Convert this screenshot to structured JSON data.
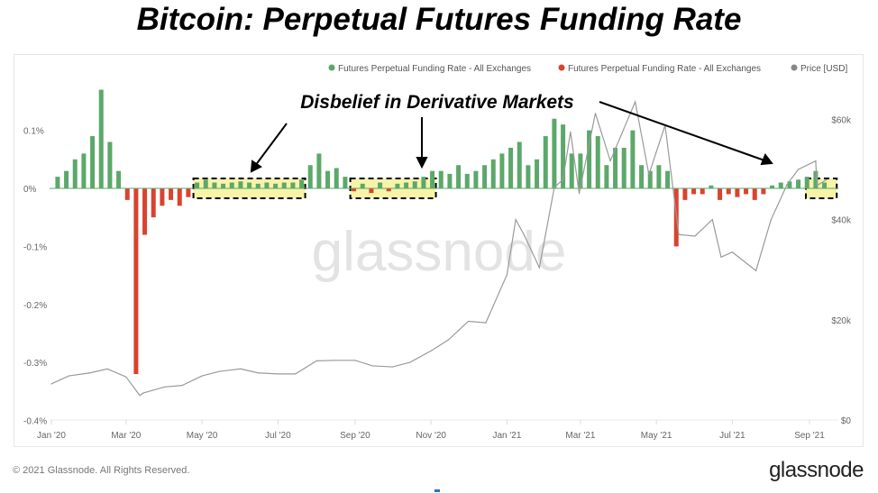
{
  "title": "Bitcoin: Perpetual Futures Funding Rate",
  "annotation": "Disbelief in Derivative Markets",
  "watermark": "glassnode",
  "footer": {
    "copyright": "© 2021 Glassnode. All Rights Reserved.",
    "logo": "glassnode"
  },
  "colors": {
    "positive": "#5ca86a",
    "negative": "#d9432f",
    "price": "#9a9a9a",
    "highlight": "#f7f3a8"
  },
  "chart_data": {
    "type": "bar+line",
    "legend": [
      "Futures Perpetual Funding Rate - All Exchanges",
      "Futures Perpetual Funding Rate - All Exchanges",
      "Price [USD]"
    ],
    "legend_position": "top-right",
    "x_ticks": [
      "Jan '20",
      "Mar '20",
      "May '20",
      "Jul '20",
      "Sep '20",
      "Nov '20",
      "Jan '21",
      "Mar '21",
      "May '21",
      "Jul '21",
      "Sep '21"
    ],
    "y_left_ticks": [
      "0.1%",
      "0%",
      "-0.1%",
      "-0.2%",
      "-0.3%",
      "-0.4%"
    ],
    "y_left_range": [
      -0.4,
      0.2
    ],
    "y_right_ticks": [
      "$60k",
      "$40k",
      "$20k",
      "$0"
    ],
    "y_right_range": [
      0,
      80000
    ],
    "highlight_ranges": [
      [
        "2020-04-27",
        "2020-07-20"
      ],
      [
        "2020-08-31",
        "2020-11-02"
      ],
      [
        "2021-09-01",
        "2021-09-20"
      ]
    ],
    "funding_rate": [
      [
        "2020-01-06",
        0.02
      ],
      [
        "2020-01-13",
        0.03
      ],
      [
        "2020-01-20",
        0.05
      ],
      [
        "2020-01-27",
        0.06
      ],
      [
        "2020-02-03",
        0.09
      ],
      [
        "2020-02-10",
        0.17
      ],
      [
        "2020-02-17",
        0.08
      ],
      [
        "2020-02-24",
        0.03
      ],
      [
        "2020-03-02",
        -0.02
      ],
      [
        "2020-03-09",
        -0.32
      ],
      [
        "2020-03-16",
        -0.08
      ],
      [
        "2020-03-23",
        -0.05
      ],
      [
        "2020-03-30",
        -0.03
      ],
      [
        "2020-04-06",
        -0.02
      ],
      [
        "2020-04-13",
        -0.03
      ],
      [
        "2020-04-20",
        -0.015
      ],
      [
        "2020-04-27",
        0.01
      ],
      [
        "2020-05-04",
        0.015
      ],
      [
        "2020-05-11",
        0.01
      ],
      [
        "2020-05-18",
        0.008
      ],
      [
        "2020-05-25",
        0.01
      ],
      [
        "2020-06-01",
        0.012
      ],
      [
        "2020-06-08",
        0.01
      ],
      [
        "2020-06-15",
        0.008
      ],
      [
        "2020-06-22",
        0.01
      ],
      [
        "2020-06-29",
        0.008
      ],
      [
        "2020-07-06",
        0.01
      ],
      [
        "2020-07-13",
        0.01
      ],
      [
        "2020-07-20",
        0.015
      ],
      [
        "2020-07-27",
        0.04
      ],
      [
        "2020-08-03",
        0.06
      ],
      [
        "2020-08-10",
        0.03
      ],
      [
        "2020-08-17",
        0.035
      ],
      [
        "2020-08-24",
        0.02
      ],
      [
        "2020-08-31",
        -0.005
      ],
      [
        "2020-09-07",
        0.008
      ],
      [
        "2020-09-14",
        -0.008
      ],
      [
        "2020-09-21",
        0.01
      ],
      [
        "2020-09-28",
        -0.005
      ],
      [
        "2020-10-05",
        0.008
      ],
      [
        "2020-10-12",
        0.01
      ],
      [
        "2020-10-19",
        0.012
      ],
      [
        "2020-10-26",
        0.02
      ],
      [
        "2020-11-02",
        0.03
      ],
      [
        "2020-11-09",
        0.03
      ],
      [
        "2020-11-16",
        0.025
      ],
      [
        "2020-11-23",
        0.04
      ],
      [
        "2020-11-30",
        0.025
      ],
      [
        "2020-12-07",
        0.03
      ],
      [
        "2020-12-14",
        0.04
      ],
      [
        "2020-12-21",
        0.05
      ],
      [
        "2020-12-28",
        0.06
      ],
      [
        "2021-01-04",
        0.07
      ],
      [
        "2021-01-11",
        0.08
      ],
      [
        "2021-01-18",
        0.04
      ],
      [
        "2021-01-25",
        0.05
      ],
      [
        "2021-02-01",
        0.09
      ],
      [
        "2021-02-08",
        0.12
      ],
      [
        "2021-02-15",
        0.11
      ],
      [
        "2021-02-22",
        0.06
      ],
      [
        "2021-03-01",
        0.06
      ],
      [
        "2021-03-08",
        0.1
      ],
      [
        "2021-03-15",
        0.09
      ],
      [
        "2021-03-22",
        0.04
      ],
      [
        "2021-03-29",
        0.07
      ],
      [
        "2021-04-05",
        0.07
      ],
      [
        "2021-04-12",
        0.1
      ],
      [
        "2021-04-19",
        0.04
      ],
      [
        "2021-04-26",
        0.03
      ],
      [
        "2021-05-03",
        0.04
      ],
      [
        "2021-05-10",
        0.03
      ],
      [
        "2021-05-17",
        -0.1
      ],
      [
        "2021-05-24",
        -0.02
      ],
      [
        "2021-05-31",
        -0.01
      ],
      [
        "2021-06-07",
        -0.01
      ],
      [
        "2021-06-14",
        0.005
      ],
      [
        "2021-06-21",
        -0.02
      ],
      [
        "2021-06-28",
        -0.01
      ],
      [
        "2021-07-05",
        -0.015
      ],
      [
        "2021-07-12",
        -0.01
      ],
      [
        "2021-07-19",
        -0.02
      ],
      [
        "2021-07-26",
        -0.01
      ],
      [
        "2021-08-02",
        0.005
      ],
      [
        "2021-08-09",
        0.01
      ],
      [
        "2021-08-16",
        0.012
      ],
      [
        "2021-08-23",
        0.015
      ],
      [
        "2021-08-30",
        0.02
      ],
      [
        "2021-09-06",
        0.03
      ],
      [
        "2021-09-13",
        0.01
      ]
    ],
    "price": [
      [
        "2020-01-01",
        7200
      ],
      [
        "2020-01-15",
        8800
      ],
      [
        "2020-02-01",
        9400
      ],
      [
        "2020-02-15",
        10200
      ],
      [
        "2020-03-01",
        8600
      ],
      [
        "2020-03-12",
        4900
      ],
      [
        "2020-03-15",
        5400
      ],
      [
        "2020-04-01",
        6600
      ],
      [
        "2020-04-15",
        6900
      ],
      [
        "2020-05-01",
        8800
      ],
      [
        "2020-05-15",
        9700
      ],
      [
        "2020-06-01",
        10200
      ],
      [
        "2020-06-15",
        9400
      ],
      [
        "2020-07-01",
        9200
      ],
      [
        "2020-07-15",
        9200
      ],
      [
        "2020-08-01",
        11800
      ],
      [
        "2020-08-15",
        11900
      ],
      [
        "2020-09-01",
        11900
      ],
      [
        "2020-09-15",
        10800
      ],
      [
        "2020-10-01",
        10600
      ],
      [
        "2020-10-15",
        11500
      ],
      [
        "2020-11-01",
        13800
      ],
      [
        "2020-11-15",
        16000
      ],
      [
        "2020-12-01",
        19700
      ],
      [
        "2020-12-15",
        19400
      ],
      [
        "2021-01-01",
        29000
      ],
      [
        "2021-01-08",
        40000
      ],
      [
        "2021-01-15",
        36800
      ],
      [
        "2021-01-27",
        30400
      ],
      [
        "2021-02-08",
        46400
      ],
      [
        "2021-02-15",
        48000
      ],
      [
        "2021-02-21",
        57500
      ],
      [
        "2021-02-28",
        45200
      ],
      [
        "2021-03-13",
        61200
      ],
      [
        "2021-03-25",
        51700
      ],
      [
        "2021-04-14",
        63500
      ],
      [
        "2021-04-25",
        49000
      ],
      [
        "2021-05-08",
        58800
      ],
      [
        "2021-05-19",
        37000
      ],
      [
        "2021-06-01",
        36700
      ],
      [
        "2021-06-15",
        40000
      ],
      [
        "2021-06-22",
        32500
      ],
      [
        "2021-07-01",
        33500
      ],
      [
        "2021-07-20",
        29800
      ],
      [
        "2021-08-01",
        39900
      ],
      [
        "2021-08-14",
        47000
      ],
      [
        "2021-08-23",
        50000
      ],
      [
        "2021-09-06",
        51700
      ],
      [
        "2021-09-07",
        46800
      ],
      [
        "2021-09-15",
        48000
      ]
    ]
  }
}
